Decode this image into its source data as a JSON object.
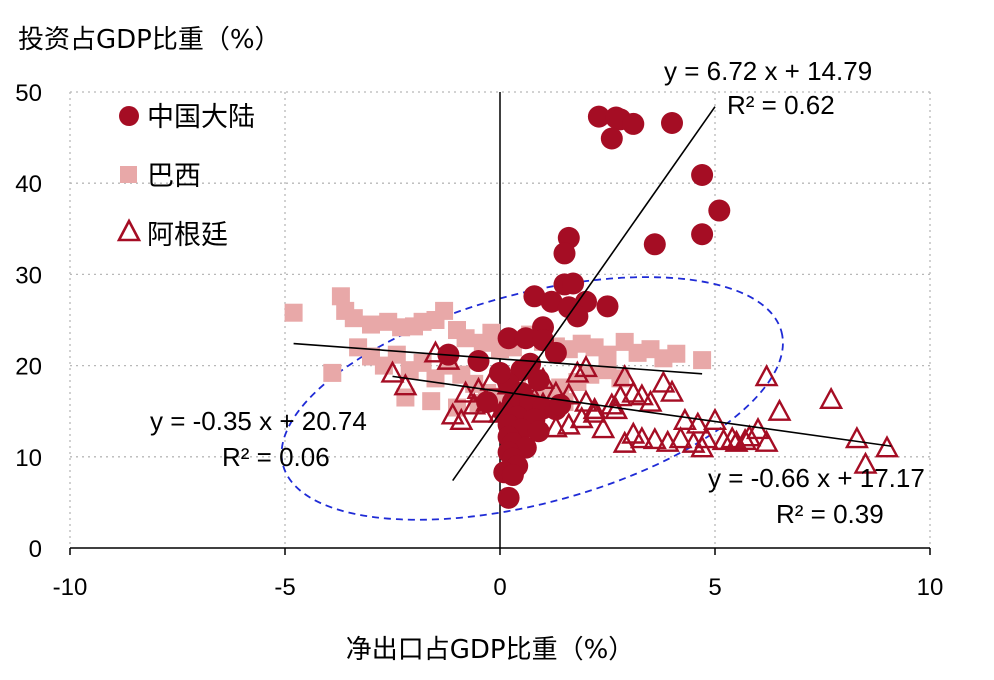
{
  "chart_data": {
    "type": "scatter",
    "xlabel": "净出口占GDP比重（%）",
    "ylabel": "投资占GDP比重（%）",
    "xlim": [
      -10,
      10
    ],
    "ylim": [
      0,
      50
    ],
    "xticks": [
      -10,
      -5,
      0,
      5,
      10
    ],
    "yticks": [
      0,
      10,
      20,
      30,
      40,
      50
    ],
    "grid": "dotted",
    "legend_position": "top-left",
    "colors": {
      "china": "#a50d24",
      "brazil": "#e8a8a8",
      "argentina": "#a50d24",
      "ellipse": "#1f2bd6",
      "fit": "#000000"
    },
    "series": [
      {
        "name": "中国大陆",
        "marker": "circle",
        "points": [
          [
            2.3,
            47.3
          ],
          [
            2.7,
            47.2
          ],
          [
            2.8,
            47.0
          ],
          [
            3.1,
            46.5
          ],
          [
            4.0,
            46.6
          ],
          [
            2.6,
            44.9
          ],
          [
            4.7,
            40.9
          ],
          [
            5.1,
            37.0
          ],
          [
            4.7,
            34.4
          ],
          [
            3.6,
            33.3
          ],
          [
            1.6,
            34.0
          ],
          [
            1.5,
            32.3
          ],
          [
            1.5,
            28.9
          ],
          [
            1.7,
            29.0
          ],
          [
            0.8,
            27.6
          ],
          [
            1.2,
            27.0
          ],
          [
            1.6,
            26.4
          ],
          [
            2.0,
            27.0
          ],
          [
            2.5,
            26.5
          ],
          [
            1.8,
            25.4
          ],
          [
            1.0,
            24.2
          ],
          [
            0.2,
            23.0
          ],
          [
            0.6,
            23.0
          ],
          [
            1.0,
            22.8
          ],
          [
            1.3,
            21.4
          ],
          [
            0.7,
            20.2
          ],
          [
            0.5,
            19.5
          ],
          [
            0.9,
            18.4
          ],
          [
            0.2,
            18.0
          ],
          [
            0.5,
            17.0
          ],
          [
            0.3,
            16.0
          ],
          [
            0.7,
            15.8
          ],
          [
            1.0,
            15.3
          ],
          [
            1.3,
            15.2
          ],
          [
            1.4,
            15.7
          ],
          [
            0.1,
            14.8
          ],
          [
            0.4,
            14.4
          ],
          [
            0.8,
            14.1
          ],
          [
            0.2,
            13.5
          ],
          [
            0.5,
            13.0
          ],
          [
            0.9,
            12.8
          ],
          [
            0.2,
            12.2
          ],
          [
            0.3,
            11.5
          ],
          [
            0.6,
            11.0
          ],
          [
            0.2,
            10.5
          ],
          [
            0.3,
            9.8
          ],
          [
            0.4,
            9.0
          ],
          [
            0.1,
            8.3
          ],
          [
            0.3,
            8.0
          ],
          [
            0.2,
            5.5
          ],
          [
            -1.2,
            21.2
          ],
          [
            -0.5,
            20.5
          ],
          [
            0.0,
            19.2
          ],
          [
            -0.3,
            16.0
          ]
        ]
      },
      {
        "name": "巴西",
        "marker": "square",
        "points": [
          [
            -4.8,
            25.8
          ],
          [
            -3.7,
            27.6
          ],
          [
            -3.6,
            26.0
          ],
          [
            -3.4,
            25.2
          ],
          [
            -3.0,
            24.5
          ],
          [
            -2.6,
            24.8
          ],
          [
            -2.3,
            24.2
          ],
          [
            -2.0,
            24.3
          ],
          [
            -1.8,
            24.8
          ],
          [
            -1.5,
            25.0
          ],
          [
            -1.3,
            26.0
          ],
          [
            -1.0,
            23.9
          ],
          [
            -0.8,
            23.0
          ],
          [
            -0.4,
            22.5
          ],
          [
            -0.2,
            23.6
          ],
          [
            0.0,
            21.8
          ],
          [
            0.3,
            22.0
          ],
          [
            0.7,
            23.4
          ],
          [
            1.0,
            22.6
          ],
          [
            1.3,
            22.1
          ],
          [
            1.6,
            21.8
          ],
          [
            1.9,
            22.4
          ],
          [
            2.2,
            22.0
          ],
          [
            2.5,
            21.2
          ],
          [
            2.9,
            22.6
          ],
          [
            3.2,
            21.4
          ],
          [
            3.5,
            21.8
          ],
          [
            3.8,
            20.8
          ],
          [
            4.1,
            21.3
          ],
          [
            4.7,
            20.6
          ],
          [
            -3.3,
            22.0
          ],
          [
            -3.0,
            21.0
          ],
          [
            -2.7,
            20.0
          ],
          [
            -2.4,
            21.2
          ],
          [
            -2.1,
            19.5
          ],
          [
            -1.8,
            20.3
          ],
          [
            -1.5,
            18.6
          ],
          [
            -1.2,
            20.0
          ],
          [
            -0.9,
            19.0
          ],
          [
            -0.6,
            18.0
          ],
          [
            -0.3,
            17.0
          ],
          [
            0.1,
            16.6
          ],
          [
            0.4,
            17.9
          ],
          [
            0.7,
            16.4
          ],
          [
            1.0,
            17.1
          ],
          [
            1.4,
            17.6
          ],
          [
            1.8,
            18.2
          ],
          [
            2.1,
            19.0
          ],
          [
            2.5,
            19.5
          ],
          [
            2.8,
            18.6
          ],
          [
            -3.9,
            19.2
          ],
          [
            -2.2,
            16.5
          ],
          [
            -1.6,
            16.1
          ],
          [
            -1.0,
            15.4
          ],
          [
            -0.5,
            15.9
          ],
          [
            0.2,
            15.2
          ],
          [
            0.6,
            15.4
          ],
          [
            1.1,
            15.8
          ],
          [
            1.5,
            16.0
          ]
        ]
      },
      {
        "name": "阿根廷",
        "marker": "triangle",
        "points": [
          [
            -2.5,
            19.2
          ],
          [
            -2.2,
            17.8
          ],
          [
            -1.5,
            21.4
          ],
          [
            -1.2,
            20.6
          ],
          [
            -0.8,
            17.0
          ],
          [
            -0.5,
            17.4
          ],
          [
            -0.2,
            18.3
          ],
          [
            0.2,
            17.9
          ],
          [
            0.5,
            16.8
          ],
          [
            0.8,
            16.4
          ],
          [
            1.0,
            18.5
          ],
          [
            1.3,
            17.0
          ],
          [
            1.6,
            16.8
          ],
          [
            1.8,
            19.2
          ],
          [
            2.0,
            19.8
          ],
          [
            2.2,
            15.2
          ],
          [
            2.6,
            15.7
          ],
          [
            2.9,
            18.8
          ],
          [
            3.1,
            17.0
          ],
          [
            3.3,
            16.7
          ],
          [
            3.5,
            16.0
          ],
          [
            3.8,
            18.1
          ],
          [
            4.0,
            17.1
          ],
          [
            4.3,
            14.0
          ],
          [
            4.6,
            13.6
          ],
          [
            5.0,
            14.0
          ],
          [
            5.4,
            12.0
          ],
          [
            5.8,
            12.2
          ],
          [
            6.2,
            18.8
          ],
          [
            6.5,
            15.0
          ],
          [
            7.7,
            16.3
          ],
          [
            8.3,
            12.0
          ],
          [
            8.5,
            9.2
          ],
          [
            9.0,
            11.0
          ],
          [
            -1.1,
            14.6
          ],
          [
            -0.6,
            15.7
          ],
          [
            -0.3,
            16.0
          ],
          [
            0.0,
            14.8
          ],
          [
            0.3,
            14.3
          ],
          [
            0.7,
            15.5
          ],
          [
            1.0,
            15.8
          ],
          [
            1.3,
            13.2
          ],
          [
            1.6,
            13.5
          ],
          [
            1.9,
            14.2
          ],
          [
            2.2,
            14.8
          ],
          [
            2.4,
            13.1
          ],
          [
            2.7,
            15.2
          ],
          [
            2.9,
            11.5
          ],
          [
            3.1,
            12.5
          ],
          [
            3.3,
            12.0
          ],
          [
            3.6,
            11.9
          ],
          [
            3.9,
            11.6
          ],
          [
            4.2,
            12.0
          ],
          [
            4.5,
            11.5
          ],
          [
            4.8,
            12.0
          ],
          [
            5.2,
            11.8
          ],
          [
            5.5,
            11.6
          ],
          [
            5.7,
            11.8
          ],
          [
            6.0,
            13.0
          ],
          [
            6.2,
            11.6
          ],
          [
            4.7,
            11.0
          ],
          [
            -0.9,
            14.0
          ],
          [
            -0.4,
            14.8
          ],
          [
            0.4,
            12.4
          ],
          [
            2.0,
            16.0
          ],
          [
            2.8,
            16.6
          ]
        ]
      }
    ],
    "fit_lines": [
      {
        "series": "中国大陆",
        "equation": "y = 6.72 x + 14.79",
        "r2": "R² = 0.62",
        "slope": 6.72,
        "intercept": 14.79,
        "x_range": [
          -1.1,
          5.0
        ]
      },
      {
        "series": "巴西",
        "equation": "y = -0.35 x + 20.74",
        "r2": "R² = 0.06",
        "slope": -0.35,
        "intercept": 20.74,
        "x_range": [
          -4.8,
          4.7
        ]
      },
      {
        "series": "阿根廷",
        "equation": "y = -0.66 x + 17.17",
        "r2": "R² = 0.39",
        "slope": -0.66,
        "intercept": 17.17,
        "x_range": [
          -2.5,
          9.1
        ]
      }
    ],
    "ellipse": {
      "cx": 0.75,
      "cy": 16.4,
      "rx": 6.0,
      "ry": 11.5,
      "rotation_deg": -15
    }
  }
}
